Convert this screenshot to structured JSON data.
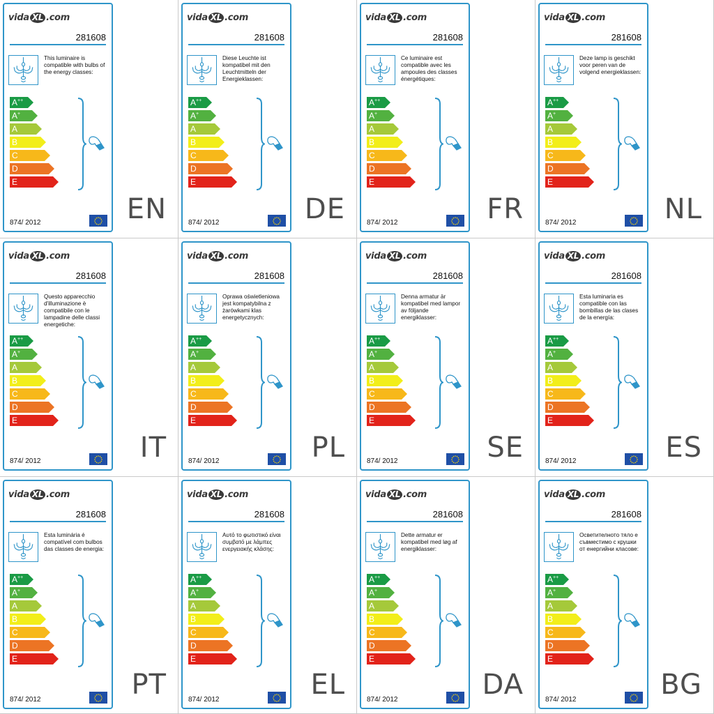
{
  "logo": {
    "left": "vida",
    "mark": "XL",
    "right": ".com"
  },
  "product_code": "281608",
  "regulation": "874/ 2012",
  "energy_classes": [
    {
      "letter": "A",
      "plus": "++",
      "color": "#1a9b45"
    },
    {
      "letter": "A",
      "plus": "+",
      "color": "#52b140"
    },
    {
      "letter": "A",
      "plus": "",
      "color": "#a5c93a"
    },
    {
      "letter": "B",
      "plus": "",
      "color": "#f2ee1a"
    },
    {
      "letter": "C",
      "plus": "",
      "color": "#f7b81a"
    },
    {
      "letter": "D",
      "plus": "",
      "color": "#ec7424"
    },
    {
      "letter": "E",
      "plus": "",
      "color": "#e2231a"
    }
  ],
  "colors": {
    "accent": "#2f95c9",
    "eu_flag": "#1f4fa6"
  },
  "icons": [
    "chandelier-icon",
    "bulb-icon",
    "eu-flag-icon",
    "brace-icon"
  ],
  "labels": [
    {
      "lang": "EN",
      "text": "This luminaire is compatible with bulbs of the energy classes:"
    },
    {
      "lang": "DE",
      "text": "Diese Leuchte ist kompatibel mit den Leuchtmitteln der Energieklassen:"
    },
    {
      "lang": "FR",
      "text": "Ce luminaire est compatible avec les ampoules des classes énergétiques:"
    },
    {
      "lang": "NL",
      "text": "Deze lamp is geschikt voor peren van de volgend energieklassen:"
    },
    {
      "lang": "IT",
      "text": "Questo apparecchio d'illuminazione è compatibile con le lampadine delle classi energetiche:"
    },
    {
      "lang": "PL",
      "text": "Oprawa oświetleniowa jest kompatybilna z żarówkami klas energetycznych:"
    },
    {
      "lang": "SE",
      "text": "Denna armatur är kompatibel med lampor av följande energiklasser:"
    },
    {
      "lang": "ES",
      "text": "Esta luminaria es compatible con las bombillas de las clases de la energía:"
    },
    {
      "lang": "PT",
      "text": "Esta luminária é compatível com bulbos das classes de energia:"
    },
    {
      "lang": "EL",
      "text": "Αυτό το φωτιστικό είναι συμβατό με λάμπες ενεργειακής κλάσης:"
    },
    {
      "lang": "DA",
      "text": "Dette armatur er kompatibel med løg af energiklasser:"
    },
    {
      "lang": "BG",
      "text": "Осветителното тяло е съвместимо с крушки от енергийни класове:"
    }
  ]
}
